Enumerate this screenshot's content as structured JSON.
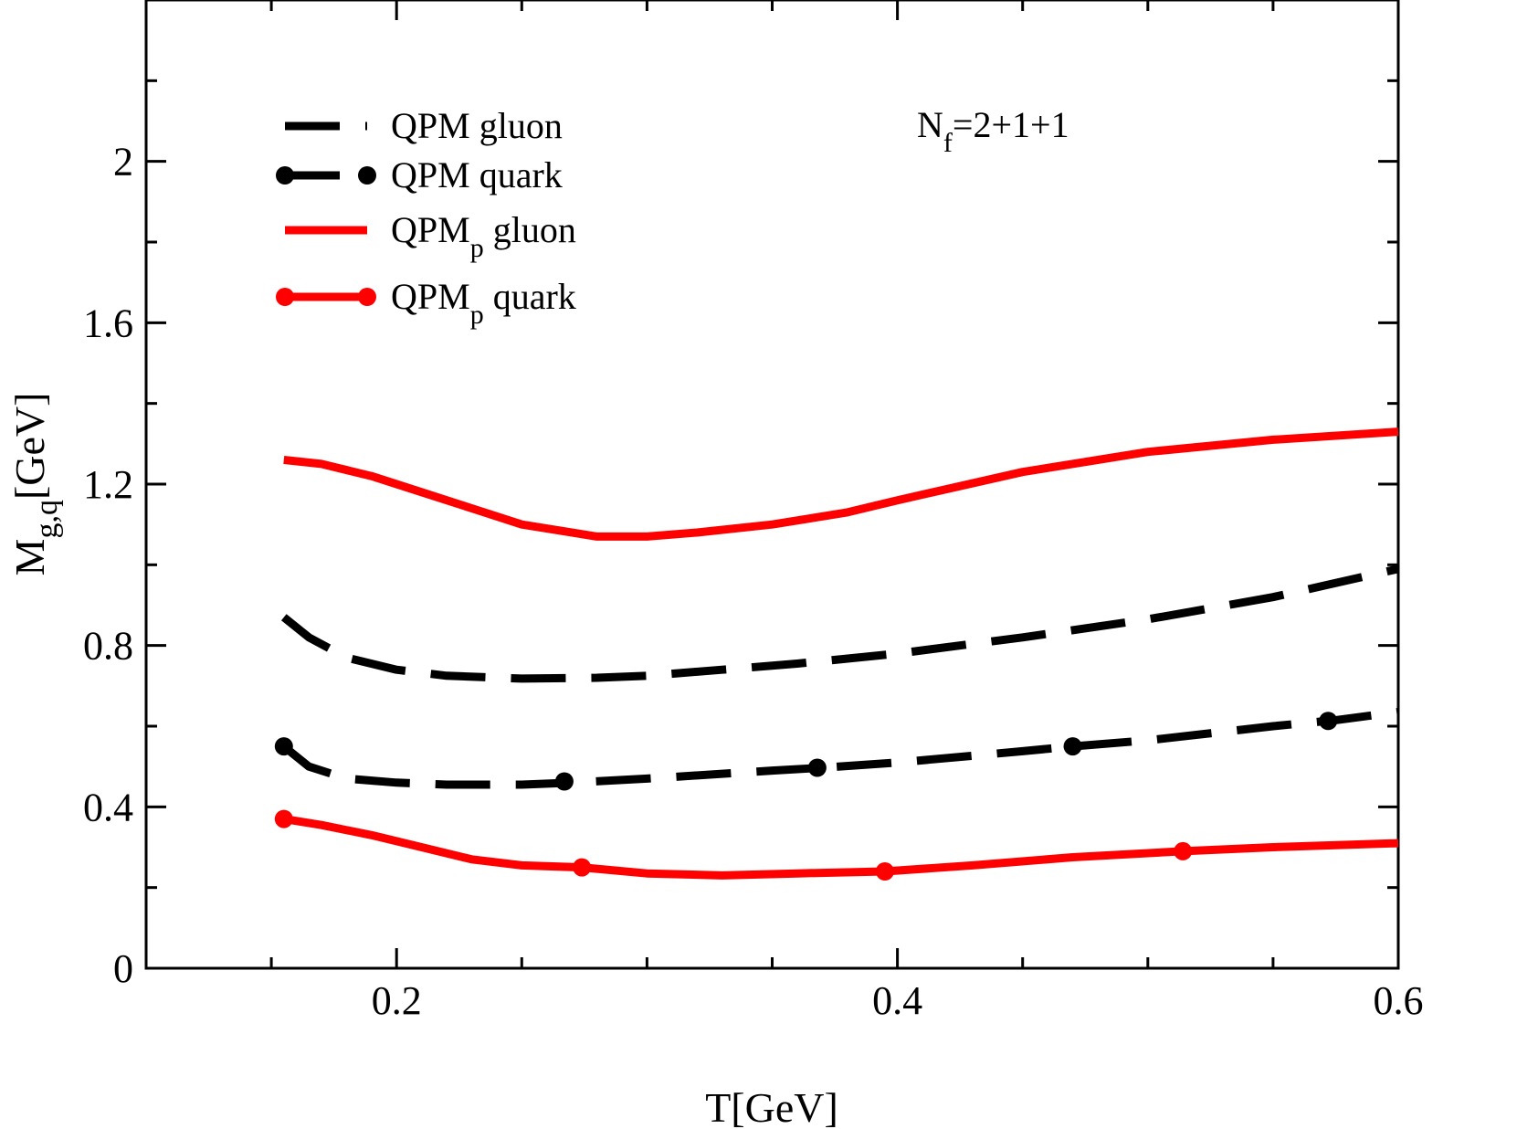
{
  "chart_data": {
    "type": "line",
    "xlabel": "T[GeV]",
    "ylabel_main": "M",
    "ylabel_sub": "g,q",
    "ylabel_tail": "[GeV]",
    "xlim": [
      0.1,
      0.6
    ],
    "ylim": [
      0,
      2.4
    ],
    "xticks": [
      0.2,
      0.4,
      0.6
    ],
    "xtick_labels": [
      "0.2",
      "0.4",
      "0.6"
    ],
    "xminor": [
      0.15,
      0.25,
      0.3,
      0.35,
      0.45,
      0.5,
      0.55
    ],
    "yticks": [
      0,
      0.4,
      0.8,
      1.2,
      1.6,
      2.0
    ],
    "ytick_labels": [
      "0",
      "0.4",
      "0.8",
      "1.2",
      "1.6",
      "2"
    ],
    "yminor": [
      0.2,
      0.6,
      1.0,
      1.4,
      1.8,
      2.2
    ],
    "annotation": {
      "main": "N",
      "sub": "f",
      "tail": "=2+1+1"
    },
    "series": [
      {
        "name": "QPM gluon",
        "legend_main": "QPM gluon",
        "legend_sub": "",
        "legend_tail": "",
        "color": "#000000",
        "style": "dashed",
        "marker": false,
        "x": [
          0.155,
          0.165,
          0.18,
          0.2,
          0.22,
          0.25,
          0.28,
          0.3,
          0.33,
          0.36,
          0.4,
          0.45,
          0.5,
          0.55,
          0.6
        ],
        "y": [
          0.87,
          0.82,
          0.77,
          0.74,
          0.725,
          0.718,
          0.72,
          0.725,
          0.74,
          0.755,
          0.78,
          0.82,
          0.865,
          0.92,
          0.99
        ]
      },
      {
        "name": "QPM quark",
        "legend_main": "QPM quark",
        "legend_sub": "",
        "legend_tail": "",
        "color": "#000000",
        "style": "dashed",
        "marker": true,
        "x": [
          0.155,
          0.165,
          0.18,
          0.2,
          0.22,
          0.25,
          0.27,
          0.3,
          0.35,
          0.37,
          0.4,
          0.45,
          0.47,
          0.5,
          0.55,
          0.575,
          0.6
        ],
        "y": [
          0.55,
          0.5,
          0.47,
          0.46,
          0.455,
          0.455,
          0.46,
          0.47,
          0.49,
          0.497,
          0.51,
          0.538,
          0.55,
          0.565,
          0.6,
          0.615,
          0.635
        ],
        "markers_x": [
          0.155,
          0.267,
          0.368,
          0.47,
          0.572
        ],
        "markers_y": [
          0.55,
          0.463,
          0.497,
          0.55,
          0.613
        ]
      },
      {
        "name": "QPMp gluon",
        "legend_main": "QPM",
        "legend_sub": "p",
        "legend_tail": " gluon",
        "color": "#ff0000",
        "style": "solid",
        "marker": false,
        "x": [
          0.155,
          0.17,
          0.19,
          0.21,
          0.23,
          0.25,
          0.28,
          0.3,
          0.32,
          0.35,
          0.38,
          0.4,
          0.45,
          0.5,
          0.55,
          0.6
        ],
        "y": [
          1.26,
          1.25,
          1.22,
          1.18,
          1.14,
          1.1,
          1.07,
          1.07,
          1.08,
          1.1,
          1.13,
          1.16,
          1.23,
          1.28,
          1.31,
          1.33
        ]
      },
      {
        "name": "QPMp quark",
        "legend_main": "QPM",
        "legend_sub": "p",
        "legend_tail": " quark",
        "color": "#ff0000",
        "style": "solid",
        "marker": true,
        "x": [
          0.155,
          0.17,
          0.19,
          0.21,
          0.23,
          0.25,
          0.274,
          0.3,
          0.33,
          0.36,
          0.395,
          0.43,
          0.47,
          0.514,
          0.55,
          0.6
        ],
        "y": [
          0.37,
          0.355,
          0.33,
          0.3,
          0.27,
          0.255,
          0.25,
          0.235,
          0.23,
          0.235,
          0.24,
          0.255,
          0.275,
          0.29,
          0.3,
          0.31
        ],
        "markers_x": [
          0.155,
          0.274,
          0.395,
          0.514
        ],
        "markers_y": [
          0.37,
          0.25,
          0.24,
          0.29
        ]
      }
    ]
  }
}
